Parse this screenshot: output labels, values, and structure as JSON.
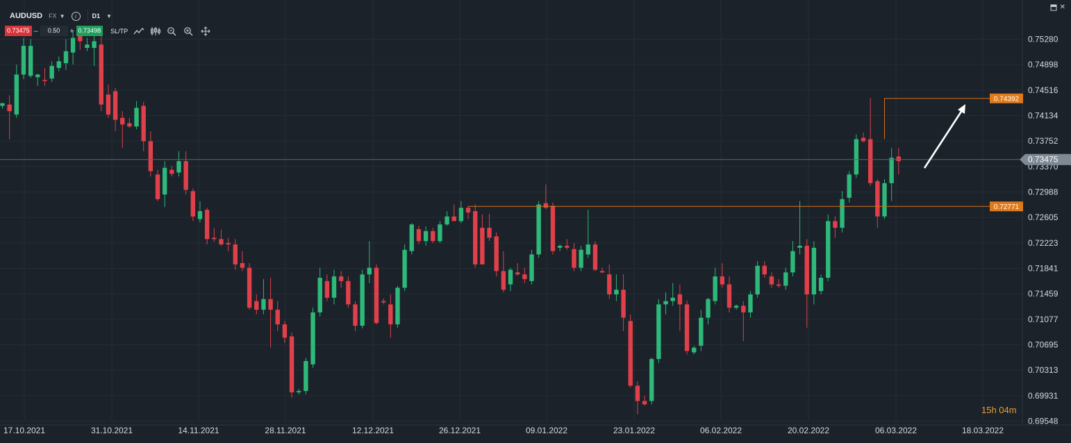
{
  "instrument": {
    "symbol": "AUDUSD",
    "type": "FX",
    "timeframe": "D1"
  },
  "trade": {
    "sell_price": "0.73475",
    "quantity": "0.50",
    "buy_price": "0.73498",
    "sltp_label": "SL/TP",
    "minus": "–",
    "plus": "+"
  },
  "icons": [
    "line-chart-icon",
    "candles-icon",
    "zoom-out-icon",
    "zoom-in-icon",
    "crosshair-icon",
    "info-icon",
    "window-maximize-icon",
    "close-icon"
  ],
  "countdown": "15h 04m",
  "colors": {
    "background": "#1b222a",
    "bull": "#2eb87a",
    "bear": "#e0404a",
    "level_line": "#d8721e",
    "level_label": "#e07a18",
    "current_label": "#7e8a95",
    "arrow": "#ffffff"
  },
  "chart_data": {
    "type": "candlestick",
    "ylim": [
      0.69548,
      0.7566
    ],
    "y_ticks": [
      "0.75280",
      "0.74898",
      "0.74516",
      "0.74134",
      "0.73752",
      "0.73370",
      "0.72988",
      "0.72605",
      "0.72223",
      "0.71841",
      "0.71459",
      "0.71077",
      "0.70695",
      "0.70313",
      "0.69931",
      "0.69548"
    ],
    "x_ticks": [
      "17.10.2021",
      "31.10.2021",
      "14.11.2021",
      "28.11.2021",
      "12.12.2021",
      "26.12.2021",
      "09.01.2022",
      "23.01.2022",
      "06.02.2022",
      "20.02.2022",
      "06.03.2022",
      "18.03.2022"
    ],
    "current_price": "0.73475",
    "levels": [
      {
        "label": "0.74392",
        "value": 0.74392
      },
      {
        "label": "0.72771",
        "value": 0.72771
      }
    ],
    "candles": [
      {
        "o": 0.7428,
        "h": 0.7432,
        "l": 0.7424,
        "c": 0.7432
      },
      {
        "o": 0.743,
        "h": 0.7444,
        "l": 0.7378,
        "c": 0.742
      },
      {
        "o": 0.7415,
        "h": 0.749,
        "l": 0.741,
        "c": 0.7475
      },
      {
        "o": 0.7475,
        "h": 0.753,
        "l": 0.7468,
        "c": 0.7518
      },
      {
        "o": 0.7473,
        "h": 0.7528,
        "l": 0.747,
        "c": 0.7518
      },
      {
        "o": 0.7471,
        "h": 0.7476,
        "l": 0.7458,
        "c": 0.7475
      },
      {
        "o": 0.7467,
        "h": 0.7485,
        "l": 0.7458,
        "c": 0.7466
      },
      {
        "o": 0.7469,
        "h": 0.7495,
        "l": 0.7464,
        "c": 0.7488
      },
      {
        "o": 0.7485,
        "h": 0.7502,
        "l": 0.748,
        "c": 0.7495
      },
      {
        "o": 0.7492,
        "h": 0.7528,
        "l": 0.7482,
        "c": 0.751
      },
      {
        "o": 0.7508,
        "h": 0.754,
        "l": 0.749,
        "c": 0.753
      },
      {
        "o": 0.7535,
        "h": 0.7548,
        "l": 0.7512,
        "c": 0.7525
      },
      {
        "o": 0.7515,
        "h": 0.753,
        "l": 0.751,
        "c": 0.752
      },
      {
        "o": 0.7515,
        "h": 0.7535,
        "l": 0.7488,
        "c": 0.7525
      },
      {
        "o": 0.752,
        "h": 0.7535,
        "l": 0.742,
        "c": 0.743
      },
      {
        "o": 0.7445,
        "h": 0.746,
        "l": 0.741,
        "c": 0.7415
      },
      {
        "o": 0.745,
        "h": 0.7455,
        "l": 0.739,
        "c": 0.7407
      },
      {
        "o": 0.741,
        "h": 0.742,
        "l": 0.7365,
        "c": 0.74
      },
      {
        "o": 0.7402,
        "h": 0.741,
        "l": 0.7395,
        "c": 0.7397
      },
      {
        "o": 0.7397,
        "h": 0.7435,
        "l": 0.7393,
        "c": 0.7425
      },
      {
        "o": 0.7428,
        "h": 0.7434,
        "l": 0.736,
        "c": 0.7375
      },
      {
        "o": 0.7375,
        "h": 0.739,
        "l": 0.7322,
        "c": 0.733
      },
      {
        "o": 0.7325,
        "h": 0.7332,
        "l": 0.7285,
        "c": 0.7288
      },
      {
        "o": 0.7295,
        "h": 0.7345,
        "l": 0.7276,
        "c": 0.7335
      },
      {
        "o": 0.7332,
        "h": 0.7338,
        "l": 0.7322,
        "c": 0.7326
      },
      {
        "o": 0.7328,
        "h": 0.736,
        "l": 0.7322,
        "c": 0.7345
      },
      {
        "o": 0.7345,
        "h": 0.736,
        "l": 0.7295,
        "c": 0.7302
      },
      {
        "o": 0.73,
        "h": 0.7304,
        "l": 0.7255,
        "c": 0.7262
      },
      {
        "o": 0.7258,
        "h": 0.7285,
        "l": 0.7253,
        "c": 0.727
      },
      {
        "o": 0.7272,
        "h": 0.7275,
        "l": 0.722,
        "c": 0.7228
      },
      {
        "o": 0.723,
        "h": 0.7245,
        "l": 0.7224,
        "c": 0.7228
      },
      {
        "o": 0.7228,
        "h": 0.7242,
        "l": 0.7218,
        "c": 0.722
      },
      {
        "o": 0.7222,
        "h": 0.723,
        "l": 0.721,
        "c": 0.722
      },
      {
        "o": 0.722,
        "h": 0.7228,
        "l": 0.7182,
        "c": 0.719
      },
      {
        "o": 0.7192,
        "h": 0.721,
        "l": 0.718,
        "c": 0.7185
      },
      {
        "o": 0.7185,
        "h": 0.7192,
        "l": 0.7122,
        "c": 0.7125
      },
      {
        "o": 0.7135,
        "h": 0.7145,
        "l": 0.7115,
        "c": 0.7122
      },
      {
        "o": 0.7122,
        "h": 0.7168,
        "l": 0.7115,
        "c": 0.7138
      },
      {
        "o": 0.7138,
        "h": 0.717,
        "l": 0.7065,
        "c": 0.7122
      },
      {
        "o": 0.7122,
        "h": 0.7135,
        "l": 0.709,
        "c": 0.71
      },
      {
        "o": 0.71,
        "h": 0.7105,
        "l": 0.7072,
        "c": 0.708
      },
      {
        "o": 0.7082,
        "h": 0.7088,
        "l": 0.699,
        "c": 0.6998
      },
      {
        "o": 0.6998,
        "h": 0.7003,
        "l": 0.6995,
        "c": 0.7
      },
      {
        "o": 0.7,
        "h": 0.705,
        "l": 0.6995,
        "c": 0.7045
      },
      {
        "o": 0.704,
        "h": 0.7125,
        "l": 0.7035,
        "c": 0.7118
      },
      {
        "o": 0.7118,
        "h": 0.7185,
        "l": 0.7112,
        "c": 0.717
      },
      {
        "o": 0.7165,
        "h": 0.7175,
        "l": 0.7135,
        "c": 0.714
      },
      {
        "o": 0.714,
        "h": 0.7182,
        "l": 0.713,
        "c": 0.7172
      },
      {
        "o": 0.7172,
        "h": 0.718,
        "l": 0.7155,
        "c": 0.7165
      },
      {
        "o": 0.7165,
        "h": 0.7172,
        "l": 0.7125,
        "c": 0.713
      },
      {
        "o": 0.713,
        "h": 0.7135,
        "l": 0.709,
        "c": 0.7098
      },
      {
        "o": 0.7098,
        "h": 0.7182,
        "l": 0.7094,
        "c": 0.7175
      },
      {
        "o": 0.7175,
        "h": 0.7225,
        "l": 0.7162,
        "c": 0.7185
      },
      {
        "o": 0.7185,
        "h": 0.719,
        "l": 0.71,
        "c": 0.7102
      },
      {
        "o": 0.7135,
        "h": 0.7139,
        "l": 0.713,
        "c": 0.7133
      },
      {
        "o": 0.713,
        "h": 0.7145,
        "l": 0.708,
        "c": 0.71
      },
      {
        "o": 0.71,
        "h": 0.7158,
        "l": 0.7095,
        "c": 0.7155
      },
      {
        "o": 0.7155,
        "h": 0.722,
        "l": 0.715,
        "c": 0.7212
      },
      {
        "o": 0.721,
        "h": 0.7252,
        "l": 0.7205,
        "c": 0.725
      },
      {
        "o": 0.7243,
        "h": 0.7248,
        "l": 0.722,
        "c": 0.7225
      },
      {
        "o": 0.7225,
        "h": 0.7247,
        "l": 0.7218,
        "c": 0.724
      },
      {
        "o": 0.724,
        "h": 0.7245,
        "l": 0.7222,
        "c": 0.7225
      },
      {
        "o": 0.7225,
        "h": 0.7255,
        "l": 0.7222,
        "c": 0.725
      },
      {
        "o": 0.725,
        "h": 0.727,
        "l": 0.7248,
        "c": 0.7262
      },
      {
        "o": 0.7262,
        "h": 0.728,
        "l": 0.7258,
        "c": 0.7255
      },
      {
        "o": 0.7255,
        "h": 0.7285,
        "l": 0.7252,
        "c": 0.7275
      },
      {
        "o": 0.7275,
        "h": 0.7278,
        "l": 0.7258,
        "c": 0.7268
      },
      {
        "o": 0.727,
        "h": 0.728,
        "l": 0.7185,
        "c": 0.719
      },
      {
        "o": 0.7245,
        "h": 0.7265,
        "l": 0.719,
        "c": 0.719
      },
      {
        "o": 0.7245,
        "h": 0.7266,
        "l": 0.7225,
        "c": 0.723
      },
      {
        "o": 0.7232,
        "h": 0.7238,
        "l": 0.7172,
        "c": 0.718
      },
      {
        "o": 0.718,
        "h": 0.721,
        "l": 0.7148,
        "c": 0.7152
      },
      {
        "o": 0.716,
        "h": 0.7185,
        "l": 0.715,
        "c": 0.7182
      },
      {
        "o": 0.7178,
        "h": 0.7192,
        "l": 0.7173,
        "c": 0.7175
      },
      {
        "o": 0.7175,
        "h": 0.7185,
        "l": 0.7162,
        "c": 0.7168
      },
      {
        "o": 0.7165,
        "h": 0.7212,
        "l": 0.716,
        "c": 0.7205
      },
      {
        "o": 0.7205,
        "h": 0.7285,
        "l": 0.72,
        "c": 0.728
      },
      {
        "o": 0.7282,
        "h": 0.731,
        "l": 0.7273,
        "c": 0.7275
      },
      {
        "o": 0.7278,
        "h": 0.7283,
        "l": 0.7205,
        "c": 0.721
      },
      {
        "o": 0.7215,
        "h": 0.722,
        "l": 0.721,
        "c": 0.7218
      },
      {
        "o": 0.7218,
        "h": 0.7228,
        "l": 0.7212,
        "c": 0.7215
      },
      {
        "o": 0.7213,
        "h": 0.7222,
        "l": 0.718,
        "c": 0.7185
      },
      {
        "o": 0.7185,
        "h": 0.7218,
        "l": 0.718,
        "c": 0.7212
      },
      {
        "o": 0.7205,
        "h": 0.7272,
        "l": 0.72,
        "c": 0.722
      },
      {
        "o": 0.722,
        "h": 0.7225,
        "l": 0.718,
        "c": 0.7182
      },
      {
        "o": 0.718,
        "h": 0.7185,
        "l": 0.7177,
        "c": 0.7178
      },
      {
        "o": 0.7175,
        "h": 0.719,
        "l": 0.7138,
        "c": 0.7145
      },
      {
        "o": 0.7145,
        "h": 0.7175,
        "l": 0.7135,
        "c": 0.7152
      },
      {
        "o": 0.7152,
        "h": 0.7175,
        "l": 0.709,
        "c": 0.711
      },
      {
        "o": 0.7105,
        "h": 0.7115,
        "l": 0.7005,
        "c": 0.7008
      },
      {
        "o": 0.7008,
        "h": 0.7015,
        "l": 0.6965,
        "c": 0.6985
      },
      {
        "o": 0.6985,
        "h": 0.6993,
        "l": 0.6978,
        "c": 0.698
      },
      {
        "o": 0.6985,
        "h": 0.705,
        "l": 0.698,
        "c": 0.7048
      },
      {
        "o": 0.7048,
        "h": 0.7138,
        "l": 0.7042,
        "c": 0.713
      },
      {
        "o": 0.713,
        "h": 0.7148,
        "l": 0.7115,
        "c": 0.7135
      },
      {
        "o": 0.7135,
        "h": 0.7162,
        "l": 0.7128,
        "c": 0.714
      },
      {
        "o": 0.7145,
        "h": 0.716,
        "l": 0.709,
        "c": 0.713
      },
      {
        "o": 0.713,
        "h": 0.7136,
        "l": 0.7055,
        "c": 0.706
      },
      {
        "o": 0.7058,
        "h": 0.7068,
        "l": 0.7055,
        "c": 0.7065
      },
      {
        "o": 0.7068,
        "h": 0.7122,
        "l": 0.706,
        "c": 0.711
      },
      {
        "o": 0.711,
        "h": 0.714,
        "l": 0.71,
        "c": 0.7138
      },
      {
        "o": 0.7135,
        "h": 0.7185,
        "l": 0.713,
        "c": 0.7172
      },
      {
        "o": 0.7172,
        "h": 0.7192,
        "l": 0.7155,
        "c": 0.716
      },
      {
        "o": 0.716,
        "h": 0.7172,
        "l": 0.7118,
        "c": 0.7125
      },
      {
        "o": 0.7125,
        "h": 0.713,
        "l": 0.7122,
        "c": 0.7128
      },
      {
        "o": 0.7128,
        "h": 0.7135,
        "l": 0.7075,
        "c": 0.7118
      },
      {
        "o": 0.7118,
        "h": 0.715,
        "l": 0.711,
        "c": 0.7145
      },
      {
        "o": 0.7145,
        "h": 0.7195,
        "l": 0.714,
        "c": 0.7188
      },
      {
        "o": 0.7188,
        "h": 0.7195,
        "l": 0.717,
        "c": 0.7175
      },
      {
        "o": 0.7172,
        "h": 0.7178,
        "l": 0.7155,
        "c": 0.716
      },
      {
        "o": 0.716,
        "h": 0.7168,
        "l": 0.7155,
        "c": 0.7158
      },
      {
        "o": 0.7158,
        "h": 0.7185,
        "l": 0.7152,
        "c": 0.7178
      },
      {
        "o": 0.7178,
        "h": 0.7225,
        "l": 0.7172,
        "c": 0.721
      },
      {
        "o": 0.7215,
        "h": 0.7285,
        "l": 0.7205,
        "c": 0.7218
      },
      {
        "o": 0.7218,
        "h": 0.7228,
        "l": 0.7095,
        "c": 0.7145
      },
      {
        "o": 0.7145,
        "h": 0.7225,
        "l": 0.713,
        "c": 0.7215
      },
      {
        "o": 0.715,
        "h": 0.7175,
        "l": 0.7145,
        "c": 0.717
      },
      {
        "o": 0.717,
        "h": 0.7265,
        "l": 0.7165,
        "c": 0.7255
      },
      {
        "o": 0.7255,
        "h": 0.7262,
        "l": 0.723,
        "c": 0.7245
      },
      {
        "o": 0.7245,
        "h": 0.73,
        "l": 0.7238,
        "c": 0.7288
      },
      {
        "o": 0.729,
        "h": 0.733,
        "l": 0.7283,
        "c": 0.7325
      },
      {
        "o": 0.7325,
        "h": 0.7385,
        "l": 0.732,
        "c": 0.7378
      },
      {
        "o": 0.738,
        "h": 0.7388,
        "l": 0.7373,
        "c": 0.7375
      },
      {
        "o": 0.7378,
        "h": 0.744,
        "l": 0.7308,
        "c": 0.7312
      },
      {
        "o": 0.7315,
        "h": 0.7318,
        "l": 0.7245,
        "c": 0.7262
      },
      {
        "o": 0.7262,
        "h": 0.7318,
        "l": 0.7258,
        "c": 0.7312
      },
      {
        "o": 0.7312,
        "h": 0.7365,
        "l": 0.7285,
        "c": 0.735
      },
      {
        "o": 0.7352,
        "h": 0.7365,
        "l": 0.7325,
        "c": 0.7345
      }
    ]
  }
}
